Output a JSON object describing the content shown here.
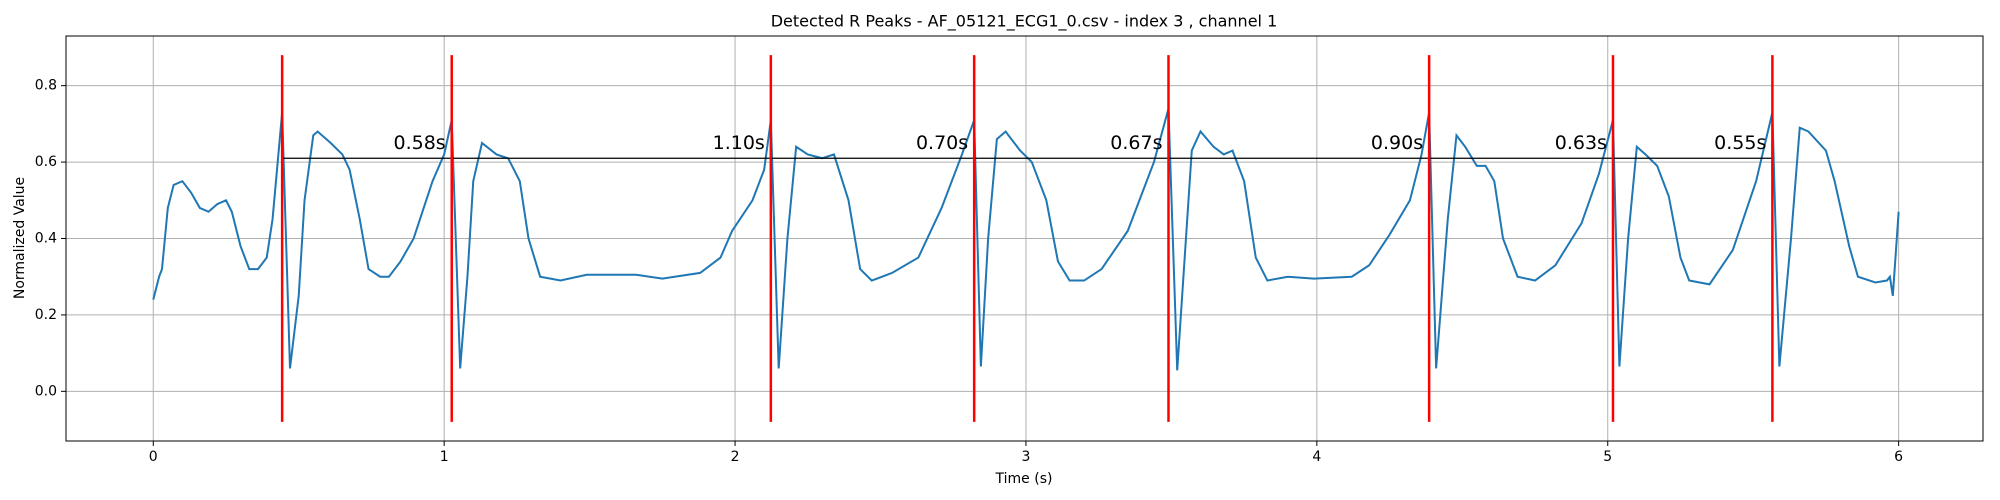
{
  "chart_data": {
    "type": "line",
    "title": "Detected R Peaks - AF_05121_ECG1_0.csv - index 3 , channel 1",
    "xlabel": "Time (s)",
    "ylabel": "Normalized Value",
    "x": [
      0,
      0.02,
      0.03,
      0.05,
      0.07,
      0.1,
      0.13,
      0.16,
      0.19,
      0.22,
      0.25,
      0.27,
      0.3,
      0.33,
      0.36,
      0.39,
      0.41,
      0.443,
      0.47,
      0.5,
      0.52,
      0.55,
      0.565,
      0.61,
      0.65,
      0.675,
      0.71,
      0.74,
      0.78,
      0.81,
      0.85,
      0.895,
      0.96,
      1.0,
      1.026,
      1.055,
      1.08,
      1.1,
      1.13,
      1.18,
      1.22,
      1.26,
      1.29,
      1.33,
      1.4,
      1.49,
      1.66,
      1.75,
      1.88,
      1.95,
      1.99,
      2.06,
      2.1,
      2.123,
      2.15,
      2.18,
      2.21,
      2.25,
      2.3,
      2.34,
      2.39,
      2.43,
      2.47,
      2.54,
      2.63,
      2.71,
      2.78,
      2.822,
      2.845,
      2.87,
      2.9,
      2.93,
      2.98,
      3.02,
      3.07,
      3.11,
      3.15,
      3.2,
      3.26,
      3.35,
      3.44,
      3.49,
      3.52,
      3.55,
      3.57,
      3.6,
      3.645,
      3.68,
      3.71,
      3.75,
      3.79,
      3.83,
      3.9,
      3.99,
      4.12,
      4.18,
      4.25,
      4.32,
      4.36,
      4.386,
      4.41,
      4.45,
      4.48,
      4.51,
      4.55,
      4.58,
      4.61,
      4.64,
      4.69,
      4.75,
      4.82,
      4.91,
      4.97,
      5.018,
      5.04,
      5.07,
      5.1,
      5.13,
      5.17,
      5.21,
      5.25,
      5.28,
      5.35,
      5.43,
      5.51,
      5.566,
      5.59,
      5.63,
      5.66,
      5.69,
      5.75,
      5.78,
      5.83,
      5.86,
      5.92,
      5.96,
      5.97,
      5.98,
      6.0
    ],
    "series": [
      {
        "color": "#1f77b4",
        "values": [
          0.24,
          0.3,
          0.32,
          0.48,
          0.54,
          0.55,
          0.52,
          0.48,
          0.47,
          0.49,
          0.5,
          0.47,
          0.38,
          0.32,
          0.32,
          0.35,
          0.45,
          0.73,
          0.06,
          0.25,
          0.5,
          0.67,
          0.68,
          0.65,
          0.62,
          0.58,
          0.45,
          0.32,
          0.3,
          0.3,
          0.34,
          0.4,
          0.55,
          0.62,
          0.71,
          0.06,
          0.3,
          0.55,
          0.65,
          0.62,
          0.61,
          0.55,
          0.4,
          0.3,
          0.29,
          0.305,
          0.305,
          0.295,
          0.31,
          0.35,
          0.42,
          0.5,
          0.58,
          0.71,
          0.06,
          0.4,
          0.64,
          0.62,
          0.61,
          0.62,
          0.5,
          0.32,
          0.29,
          0.31,
          0.35,
          0.48,
          0.62,
          0.71,
          0.065,
          0.4,
          0.66,
          0.68,
          0.63,
          0.6,
          0.5,
          0.34,
          0.29,
          0.29,
          0.32,
          0.42,
          0.6,
          0.74,
          0.055,
          0.4,
          0.63,
          0.68,
          0.64,
          0.62,
          0.63,
          0.55,
          0.35,
          0.29,
          0.3,
          0.295,
          0.3,
          0.33,
          0.41,
          0.5,
          0.62,
          0.73,
          0.06,
          0.45,
          0.67,
          0.64,
          0.59,
          0.59,
          0.55,
          0.4,
          0.3,
          0.29,
          0.33,
          0.44,
          0.57,
          0.71,
          0.065,
          0.4,
          0.64,
          0.62,
          0.59,
          0.51,
          0.35,
          0.29,
          0.28,
          0.37,
          0.55,
          0.73,
          0.065,
          0.4,
          0.69,
          0.68,
          0.63,
          0.55,
          0.38,
          0.3,
          0.285,
          0.29,
          0.3,
          0.25,
          0.47
        ]
      }
    ],
    "peaks": [
      0.443,
      1.026,
      2.123,
      2.822,
      3.49,
      4.386,
      5.018,
      5.566
    ],
    "peak_color": "red",
    "peak_line_range": [
      -0.08,
      0.88
    ],
    "interval_line_y": 0.61,
    "intervals": {
      "values": [
        0.58,
        1.1,
        0.7,
        0.67,
        0.9,
        0.63,
        0.55
      ],
      "value_labels": [
        "0.58s",
        "1.10s",
        "0.70s",
        "0.67s",
        "0.90s",
        "0.63s",
        "0.55s"
      ]
    },
    "xlim": [
      -0.3,
      6.29
    ],
    "ylim": [
      -0.13,
      0.93
    ],
    "xticks": [
      0,
      1,
      2,
      3,
      4,
      5,
      6
    ],
    "yticks": [
      {
        "value": 0,
        "label": "0.0"
      },
      0.2,
      0.4,
      0.6,
      0.8
    ],
    "grid": true
  }
}
